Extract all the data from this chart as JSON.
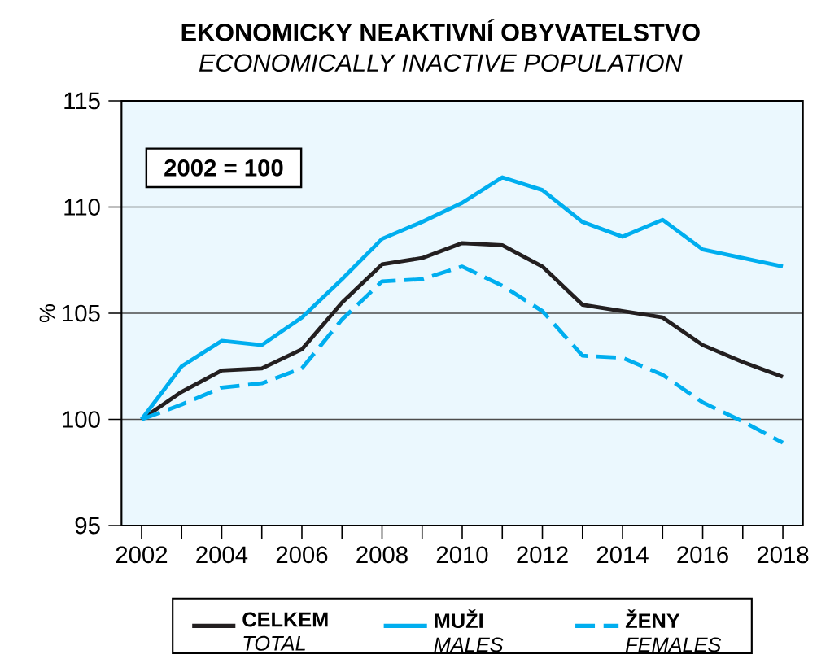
{
  "chart_data": {
    "type": "line",
    "title": "EKONOMICKY NEAKTIVNÍ OBYVATELSTVO",
    "subtitle": "ECONOMICALLY INACTIVE POPULATION",
    "ylabel": "%",
    "annotations": [
      "2002 = 100"
    ],
    "x": [
      2002,
      2003,
      2004,
      2005,
      2006,
      2007,
      2008,
      2009,
      2010,
      2011,
      2012,
      2013,
      2014,
      2015,
      2016,
      2017,
      2018
    ],
    "series": [
      {
        "name": "**CELKEM** *TOTAL*",
        "color": "#231f20",
        "line_style": "solid",
        "values": [
          100,
          101.3,
          102.3,
          102.4,
          103.3,
          105.5,
          107.3,
          107.6,
          108.3,
          108.2,
          107.2,
          105.4,
          105.1,
          104.8,
          103.5,
          102.7,
          102.0
        ]
      },
      {
        "name": "**MUŽI** *MALES*",
        "color": "#00aeef",
        "line_style": "solid",
        "values": [
          100,
          102.5,
          103.7,
          103.5,
          104.8,
          106.6,
          108.5,
          109.3,
          110.2,
          111.4,
          110.8,
          109.3,
          108.6,
          109.4,
          108.0,
          107.6,
          107.2
        ]
      },
      {
        "name": "**ŽENY** *FEMALES*",
        "color": "#00aeef",
        "line_style": "dashed",
        "values": [
          100,
          100.7,
          101.5,
          101.7,
          102.4,
          104.7,
          106.5,
          106.6,
          107.2,
          106.3,
          105.1,
          103.0,
          102.9,
          102.1,
          100.8,
          99.9,
          98.9
        ]
      }
    ],
    "xlim": [
      2001.5,
      2018.5
    ],
    "xticks": [
      2002,
      {
        "value": 2003,
        "label": null
      },
      2004,
      {
        "value": 2005,
        "label": null
      },
      2006,
      {
        "value": 2007,
        "label": null
      },
      2008,
      {
        "value": 2009,
        "label": null
      },
      2010,
      {
        "value": 2011,
        "label": null
      },
      2012,
      {
        "value": 2013,
        "label": null
      },
      2014,
      {
        "value": 2015,
        "label": null
      },
      2016,
      {
        "value": 2017,
        "label": null
      },
      2018
    ],
    "ylim": [
      95,
      115
    ],
    "yticks": [
      95,
      100,
      105,
      110,
      115
    ],
    "grid": "y",
    "legend": "bottom",
    "marker": "none"
  }
}
